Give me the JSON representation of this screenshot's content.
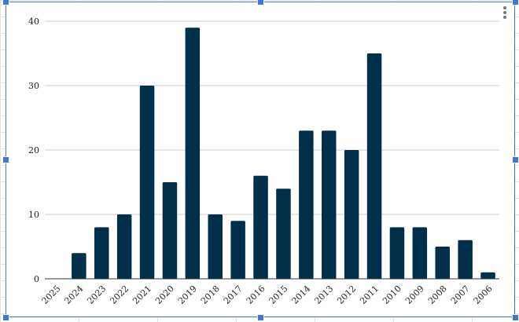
{
  "chart_data": {
    "type": "bar",
    "title": "",
    "xlabel": "",
    "ylabel": "",
    "categories": [
      "2025",
      "2024",
      "2023",
      "2022",
      "2021",
      "2020",
      "2019",
      "2018",
      "2017",
      "2016",
      "2015",
      "2014",
      "2013",
      "2012",
      "2011",
      "2010",
      "2009",
      "2008",
      "2007",
      "2006"
    ],
    "values": [
      0,
      4,
      8,
      10,
      30,
      15,
      39,
      10,
      9,
      16,
      14,
      23,
      23,
      20,
      35,
      8,
      8,
      5,
      6,
      1
    ],
    "ylim": [
      0,
      40
    ],
    "yticks": [
      0,
      10,
      20,
      30,
      40
    ],
    "grid": true,
    "legend": "none",
    "bar_color": "#002f4b",
    "gridline_color": "#cccccc"
  },
  "editor": {
    "selection_color": "#3b78d8",
    "menu_icon": "more-vert-icon"
  }
}
